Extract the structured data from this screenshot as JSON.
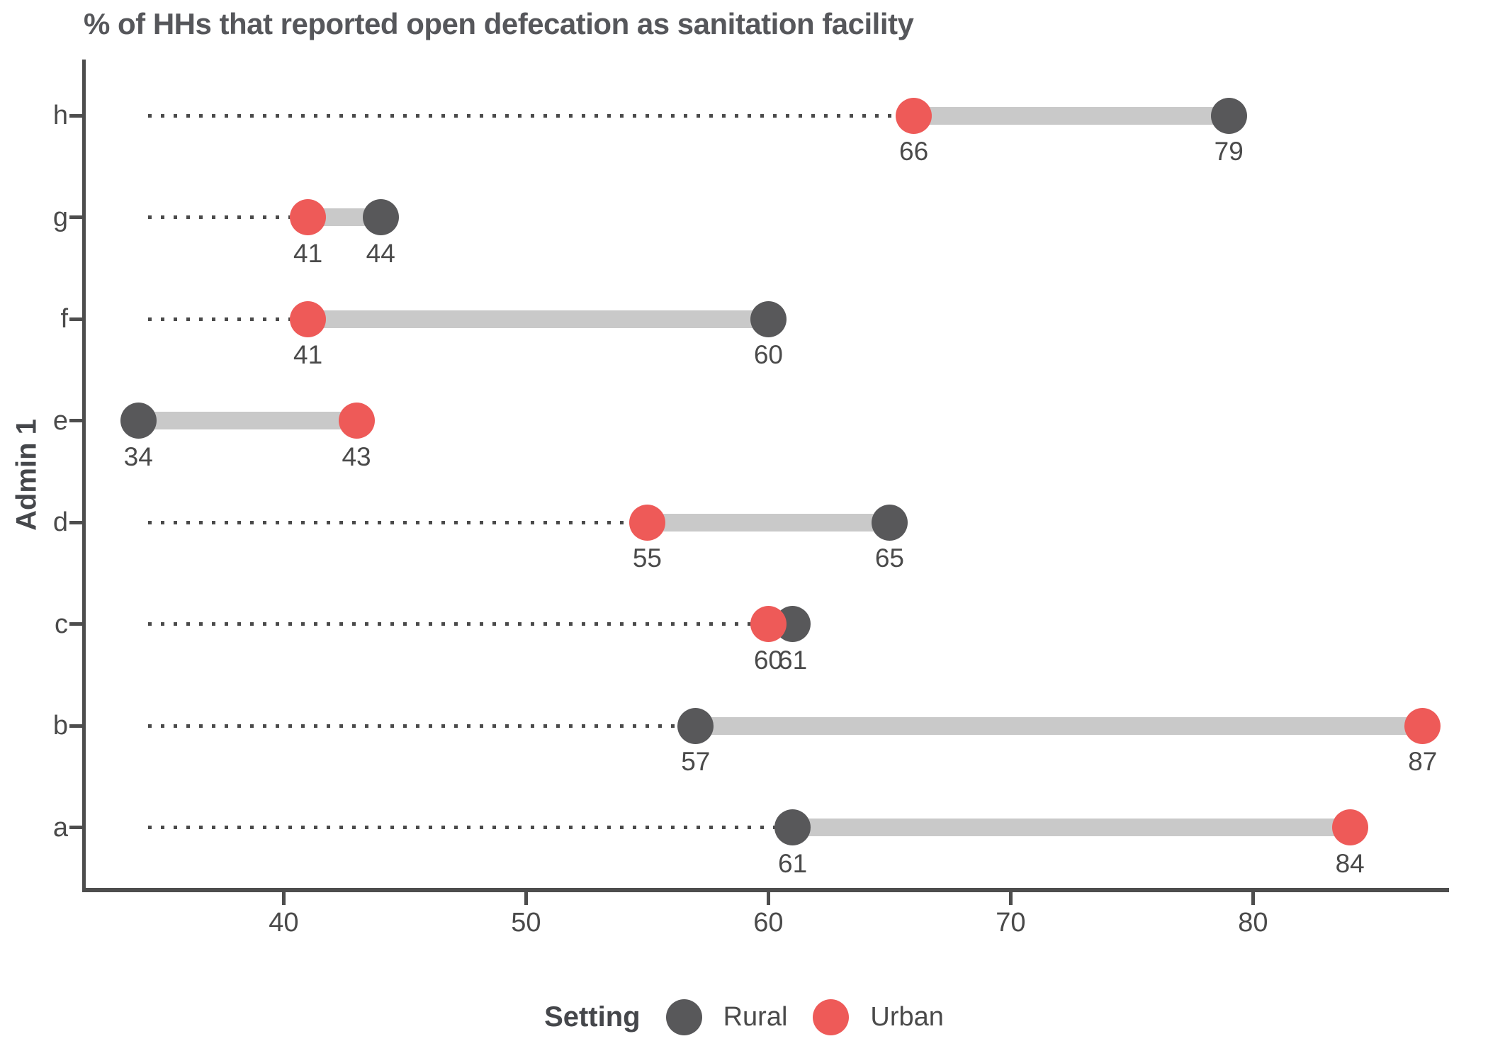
{
  "title": "% of HHs that reported open defecation as sanitation facility",
  "y_axis_label": "Admin 1",
  "legend": {
    "title": "Setting",
    "items": [
      {
        "label": "Rural",
        "color": "#58585A"
      },
      {
        "label": "Urban",
        "color": "#EE5A58"
      }
    ]
  },
  "colors": {
    "rural": "#58585A",
    "urban": "#EE5A58",
    "connector": "#C9C9C9",
    "leader": "#4A4A4A",
    "axis": "#4D4D4D",
    "text": "#4A4A4A",
    "title": "#56575B"
  },
  "chart_data": {
    "type": "dumbbell",
    "title": "% of HHs that reported open defecation as sanitation facility",
    "ylabel": "Admin 1",
    "xlabel": "",
    "categories": [
      "h",
      "g",
      "f",
      "e",
      "d",
      "c",
      "b",
      "a"
    ],
    "series": [
      {
        "name": "Rural",
        "values": [
          79,
          44,
          60,
          34,
          65,
          61,
          57,
          61
        ]
      },
      {
        "name": "Urban",
        "values": [
          66,
          41,
          41,
          43,
          55,
          60,
          87,
          84
        ]
      }
    ],
    "x_ticks": [
      40,
      50,
      60,
      70,
      80
    ],
    "xlim": [
      31.8,
      88.0
    ],
    "grid": "off",
    "legend_position": "bottom",
    "value_labels": "on"
  }
}
